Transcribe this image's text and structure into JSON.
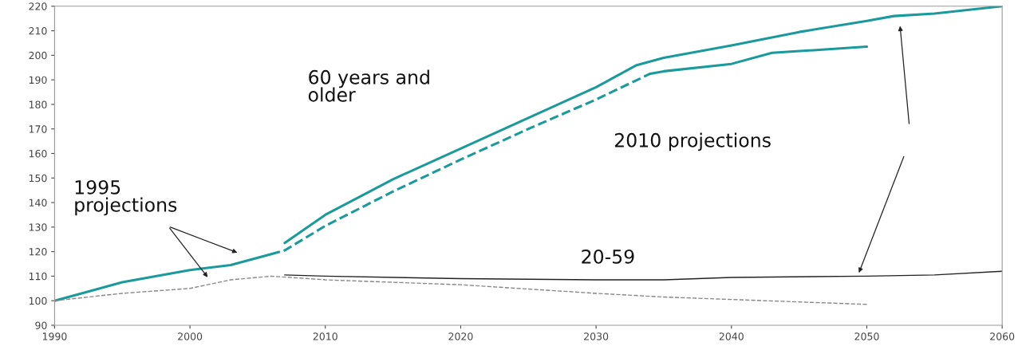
{
  "chart_data": {
    "type": "line",
    "xlim": [
      1990,
      2060
    ],
    "xticks": [
      1990,
      2000,
      2010,
      2020,
      2030,
      2040,
      2050,
      2060
    ],
    "ylim": [
      90,
      220
    ],
    "yticks": [
      90,
      100,
      110,
      120,
      130,
      140,
      150,
      160,
      170,
      180,
      190,
      200,
      210,
      220
    ],
    "grid": false,
    "legend": false,
    "marker": "none",
    "series": [
      {
        "color": "#1a9a9a",
        "line_style": "solid",
        "x": [
          1990,
          1992,
          1995,
          2000,
          2003,
          2006
        ],
        "values": [
          100,
          103,
          107.5,
          112.5,
          114.5,
          119
        ]
      },
      {
        "color": "#1a9a9a",
        "line_style": "solid",
        "x": [
          2007,
          2010,
          2015,
          2020,
          2025,
          2030,
          2033,
          2035,
          2040,
          2045,
          2050,
          2052,
          2055,
          2060
        ],
        "values": [
          123.5,
          135,
          149.5,
          162,
          174.5,
          187,
          196,
          199,
          204,
          209.5,
          214,
          216,
          217,
          220
        ]
      },
      {
        "color": "#1a9a9a",
        "line_style": "dashed",
        "x": [
          2006,
          2007,
          2010,
          2015,
          2020,
          2025,
          2030,
          2034
        ],
        "values": [
          119,
          120.5,
          130.5,
          144.5,
          157.5,
          170,
          182,
          192.5
        ]
      },
      {
        "color": "#1a9a9a",
        "line_style": "solid",
        "x": [
          2034,
          2035,
          2040,
          2043,
          2050
        ],
        "values": [
          192.5,
          193.5,
          196.5,
          201,
          203.5
        ]
      },
      {
        "color": "#222222",
        "line_style": "solid",
        "x": [
          2007,
          2010,
          2020,
          2030,
          2035,
          2040,
          2050,
          2055,
          2060
        ],
        "values": [
          110.5,
          110,
          109,
          108.5,
          108.5,
          109.5,
          110,
          110.5,
          112
        ]
      },
      {
        "color": "#888888",
        "line_style": "dashed",
        "x": [
          1990,
          1995,
          2000,
          2003,
          2006,
          2010,
          2020,
          2030,
          2035,
          2040,
          2045,
          2050
        ],
        "values": [
          100,
          103,
          105,
          108.5,
          110,
          108.5,
          106.5,
          103,
          101.5,
          100.5,
          99.5,
          98.5
        ]
      }
    ],
    "annotations": [
      "60 years and\nolder",
      "1995\nprojections",
      "2010 projections",
      "20-59"
    ]
  }
}
